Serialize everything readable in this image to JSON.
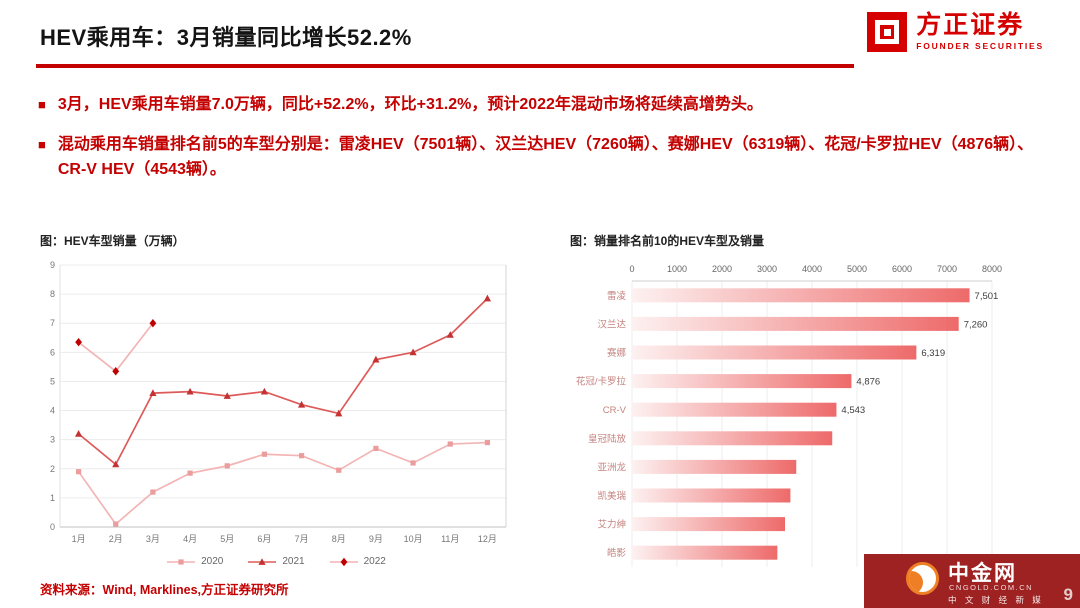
{
  "header": {
    "title": "HEV乘用车：3月销量同比增长52.2%",
    "logo_name": "方正证券",
    "logo_sub": "FOUNDER SECURITIES"
  },
  "bullets": [
    {
      "marker": "■",
      "text": "3月，HEV乘用车销量7.0万辆，同比+52.2%，环比+31.2%，预计2022年混动市场将延续高增势头。"
    },
    {
      "marker": "■",
      "text": "混动乘用车销量排名前5的车型分别是：雷凌HEV（7501辆）、汉兰达HEV（7260辆）、赛娜HEV（6319辆）、花冠/卡罗拉HEV（4876辆）、CR-V HEV（4543辆）。"
    }
  ],
  "footer": {
    "source": "资料来源：Wind, Marklines,方正证券研究所",
    "page": "9"
  },
  "watermark": {
    "name": "中金网",
    "domain": "CNGOLD.COM.CN",
    "tagline": "中 文 财 经 新 媒"
  },
  "chart_data": [
    {
      "type": "line",
      "title": "图：HEV车型销量（万辆）",
      "categories": [
        "1月",
        "2月",
        "3月",
        "4月",
        "5月",
        "6月",
        "7月",
        "8月",
        "9月",
        "10月",
        "11月",
        "12月"
      ],
      "series": [
        {
          "name": "2020",
          "marker": "square",
          "line_color": "#f3b4b4",
          "marker_color": "#eb9c9c",
          "values": [
            1.9,
            0.1,
            1.2,
            1.85,
            2.1,
            2.5,
            2.45,
            1.95,
            2.7,
            2.2,
            2.85,
            2.9
          ]
        },
        {
          "name": "2021",
          "marker": "triangle",
          "line_color": "#dd5a5a",
          "marker_color": "#c43232",
          "values": [
            3.2,
            2.15,
            4.6,
            4.65,
            4.5,
            4.65,
            4.2,
            3.9,
            5.75,
            6.0,
            6.6,
            7.85
          ]
        },
        {
          "name": "2022",
          "marker": "diamond",
          "line_color": "#f3b4b4",
          "marker_color": "#c00000",
          "values": [
            6.35,
            5.35,
            7.0
          ]
        }
      ],
      "ylim": [
        0,
        9
      ],
      "grid": true,
      "legend_position": "bottom"
    },
    {
      "type": "bar",
      "orientation": "horizontal",
      "title": "图：销量排名前10的HEV车型及销量",
      "categories": [
        "雷凌",
        "汉兰达",
        "赛娜",
        "花冠/卡罗拉",
        "CR-V",
        "皇冠陆放",
        "亚洲龙",
        "凯美瑞",
        "艾力绅",
        "皓影"
      ],
      "values": [
        7501,
        7260,
        6319,
        4876,
        4543,
        4450,
        3650,
        3520,
        3400,
        3230
      ],
      "value_labels": [
        "7,501",
        "7,260",
        "6,319",
        "4,876",
        "4,543",
        "",
        "",
        "",
        "",
        ""
      ],
      "xlim": [
        0,
        8000
      ],
      "x_ticks": [
        0,
        1000,
        2000,
        3000,
        4000,
        5000,
        6000,
        7000,
        8000
      ],
      "bar_gradient": [
        "#fdf1f1",
        "#ee6a6a"
      ]
    }
  ]
}
